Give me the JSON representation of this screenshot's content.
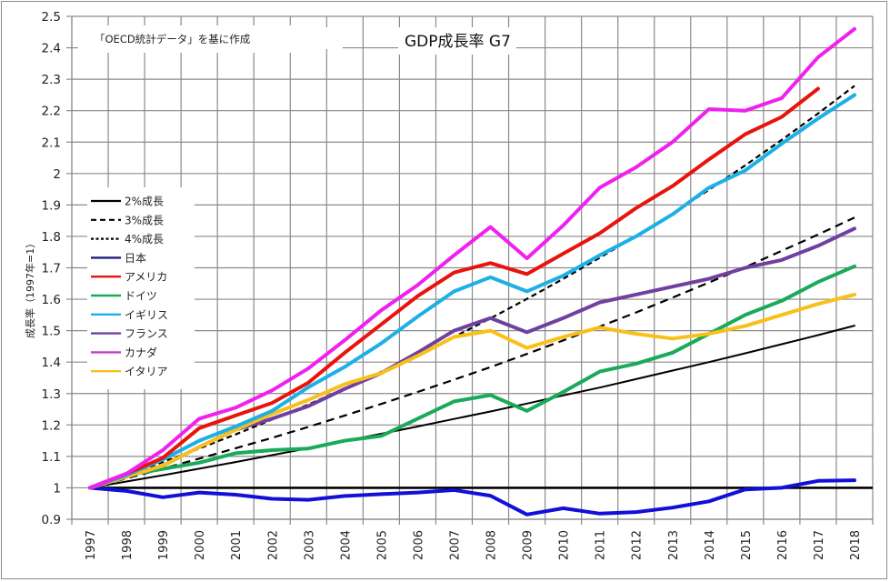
{
  "chart_data": {
    "type": "line",
    "title": "GDP成長率 G7",
    "annotation": "「OECD統計データ」を基に作成",
    "xlabel": "",
    "ylabel": "成長率（1997年=1）",
    "ylim": [
      0.9,
      2.5
    ],
    "ytick_step": 0.1,
    "yticks": [
      "0.9",
      "1",
      "1.1",
      "1.2",
      "1.3",
      "1.4",
      "1.5",
      "1.6",
      "1.7",
      "1.8",
      "1.9",
      "2",
      "2.1",
      "2.2",
      "2.3",
      "2.4",
      "2.5"
    ],
    "grid": true,
    "legend_position": "left-middle",
    "reference_line": 1.0,
    "categories": [
      "1997",
      "1998",
      "1999",
      "2000",
      "2001",
      "2002",
      "2003",
      "2004",
      "2005",
      "2006",
      "2007",
      "2008",
      "2009",
      "2010",
      "2011",
      "2012",
      "2013",
      "2014",
      "2015",
      "2016",
      "2017",
      "2018"
    ],
    "series": [
      {
        "name": "2%成長",
        "color": "#000000",
        "style": "solid-thin",
        "values": [
          1.0,
          1.02,
          1.04,
          1.061,
          1.082,
          1.104,
          1.126,
          1.149,
          1.172,
          1.195,
          1.219,
          1.243,
          1.268,
          1.294,
          1.319,
          1.346,
          1.373,
          1.4,
          1.428,
          1.457,
          1.486,
          1.516
        ]
      },
      {
        "name": "3%成長",
        "color": "#000000",
        "style": "dashed",
        "values": [
          1.0,
          1.03,
          1.061,
          1.093,
          1.126,
          1.159,
          1.194,
          1.23,
          1.267,
          1.305,
          1.344,
          1.384,
          1.426,
          1.469,
          1.513,
          1.558,
          1.605,
          1.653,
          1.702,
          1.754,
          1.806,
          1.86
        ]
      },
      {
        "name": "4%成長",
        "color": "#000000",
        "style": "dashed-fine",
        "values": [
          1.0,
          1.04,
          1.082,
          1.125,
          1.17,
          1.217,
          1.265,
          1.316,
          1.369,
          1.423,
          1.48,
          1.539,
          1.601,
          1.665,
          1.732,
          1.801,
          1.873,
          1.948,
          2.026,
          2.107,
          2.191,
          2.279
        ]
      },
      {
        "name": "日本",
        "color": "#1010d8",
        "legend_color": "#1f1f7a",
        "style": "solid",
        "values": [
          1.0,
          0.99,
          0.97,
          0.985,
          0.978,
          0.965,
          0.962,
          0.974,
          0.98,
          0.985,
          0.993,
          0.975,
          0.915,
          0.935,
          0.918,
          0.923,
          0.937,
          0.957,
          0.995,
          1.0,
          1.022,
          1.024
        ]
      },
      {
        "name": "アメリカ",
        "color": "#e8140c",
        "style": "solid",
        "values": [
          1.0,
          1.045,
          1.095,
          1.19,
          1.23,
          1.27,
          1.335,
          1.43,
          1.52,
          1.61,
          1.685,
          1.715,
          1.68,
          1.745,
          1.81,
          1.89,
          1.96,
          2.045,
          2.125,
          2.18,
          2.27,
          null
        ]
      },
      {
        "name": "ドイツ",
        "color": "#1aaa58",
        "style": "solid",
        "values": [
          1.0,
          1.04,
          1.06,
          1.08,
          1.11,
          1.12,
          1.125,
          1.15,
          1.165,
          1.22,
          1.275,
          1.295,
          1.245,
          1.305,
          1.37,
          1.395,
          1.43,
          1.49,
          1.55,
          1.595,
          1.655,
          1.705
        ]
      },
      {
        "name": "イギリス",
        "color": "#1cb0e6",
        "style": "solid",
        "values": [
          1.0,
          1.04,
          1.09,
          1.15,
          1.195,
          1.245,
          1.32,
          1.385,
          1.46,
          1.545,
          1.625,
          1.67,
          1.625,
          1.675,
          1.74,
          1.8,
          1.87,
          1.955,
          2.01,
          2.095,
          2.175,
          2.25
        ]
      },
      {
        "name": "フランス",
        "color": "#7040a0",
        "style": "solid",
        "values": [
          1.0,
          1.035,
          1.07,
          1.13,
          1.185,
          1.22,
          1.26,
          1.315,
          1.365,
          1.43,
          1.5,
          1.54,
          1.495,
          1.54,
          1.59,
          1.615,
          1.64,
          1.665,
          1.7,
          1.725,
          1.77,
          1.825
        ]
      },
      {
        "name": "カナダ",
        "color": "#f020f0",
        "legend_color": "#c040c8",
        "style": "solid",
        "values": [
          1.0,
          1.045,
          1.12,
          1.22,
          1.255,
          1.31,
          1.38,
          1.47,
          1.565,
          1.645,
          1.74,
          1.83,
          1.73,
          1.835,
          1.955,
          2.02,
          2.1,
          2.205,
          2.2,
          2.24,
          2.37,
          2.46
        ]
      },
      {
        "name": "イタリア",
        "color": "#f8c018",
        "style": "solid",
        "values": [
          1.0,
          1.035,
          1.07,
          1.13,
          1.185,
          1.235,
          1.28,
          1.33,
          1.365,
          1.42,
          1.48,
          1.5,
          1.445,
          1.48,
          1.51,
          1.49,
          1.475,
          1.49,
          1.515,
          1.55,
          1.585,
          1.615
        ]
      }
    ]
  }
}
